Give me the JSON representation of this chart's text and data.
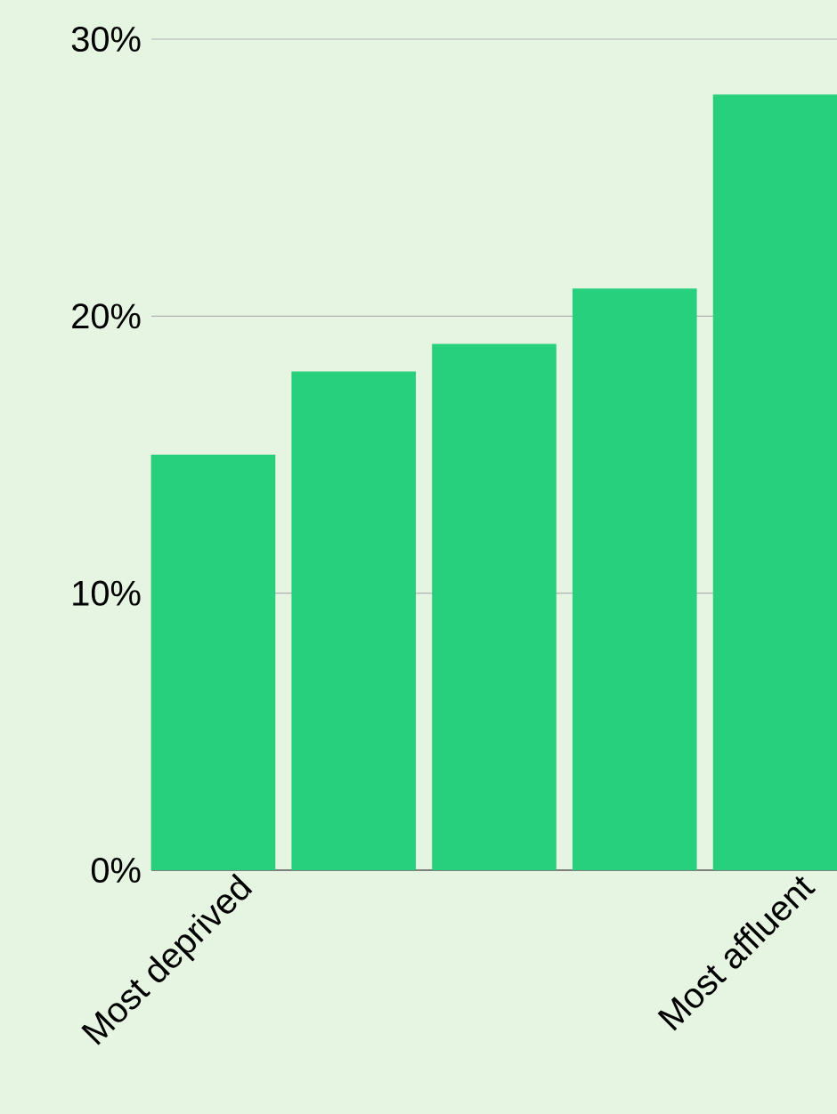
{
  "chart_data": {
    "type": "bar",
    "categories": [
      "Most deprived",
      null,
      null,
      null,
      "Most affluent"
    ],
    "values": [
      15,
      18,
      19,
      21,
      28
    ],
    "color": "#26d07c",
    "ylim": [
      0,
      30
    ],
    "yticks": [
      {
        "value": 0,
        "label": "0%"
      },
      {
        "value": 10,
        "label": "10%"
      },
      {
        "value": 20,
        "label": "20%"
      },
      {
        "value": 30,
        "label": "30%"
      }
    ],
    "grid": "y"
  }
}
